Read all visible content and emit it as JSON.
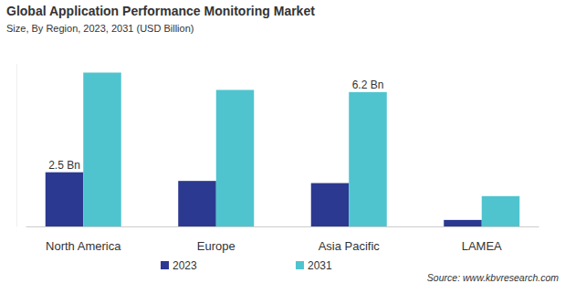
{
  "chart_data": {
    "type": "bar",
    "title": "Global Application Performance Monitoring Market",
    "subtitle": "Size, By Region, 2023, 2031 (USD Billion)",
    "source": "Source: www.kbvresearch.com",
    "categories": [
      "North America",
      "Europe",
      "Asia Pacific",
      "LAMEA"
    ],
    "series": [
      {
        "name": "2023",
        "color": "#2b3990",
        "values": [
          2.5,
          2.1,
          2.0,
          0.3
        ],
        "value_labels": [
          "2.5 Bn",
          null,
          null,
          null
        ]
      },
      {
        "name": "2031",
        "color": "#4fc4cf",
        "values": [
          7.1,
          6.3,
          6.2,
          1.4
        ],
        "value_labels": [
          null,
          null,
          "6.2 Bn",
          null
        ]
      }
    ],
    "ylim": [
      0,
      7.5
    ],
    "data_labels": true,
    "tick_labels": "x",
    "grid": false,
    "legend": "bottom"
  }
}
